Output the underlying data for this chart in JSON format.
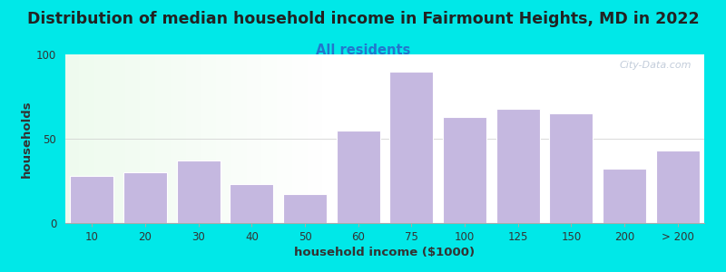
{
  "title": "Distribution of median household income in Fairmount Heights, MD in 2022",
  "subtitle": "All residents",
  "xlabel": "household income ($1000)",
  "ylabel": "households",
  "bar_labels": [
    "10",
    "20",
    "30",
    "40",
    "50",
    "60",
    "75",
    "100",
    "125",
    "150",
    "200",
    "> 200"
  ],
  "bar_values": [
    28,
    30,
    37,
    23,
    17,
    55,
    90,
    63,
    68,
    65,
    32,
    43
  ],
  "bar_color": "#c5b8e0",
  "bar_edgecolor": "#c5b8e0",
  "ylim": [
    0,
    100
  ],
  "yticks": [
    0,
    50,
    100
  ],
  "background_color": "#00e8e8",
  "title_fontsize": 12.5,
  "subtitle_fontsize": 10.5,
  "subtitle_color": "#2277cc",
  "axis_label_fontsize": 9.5,
  "tick_fontsize": 8.5,
  "watermark_text": "City-Data.com",
  "watermark_color": "#b8c4d4",
  "title_color": "#222222"
}
